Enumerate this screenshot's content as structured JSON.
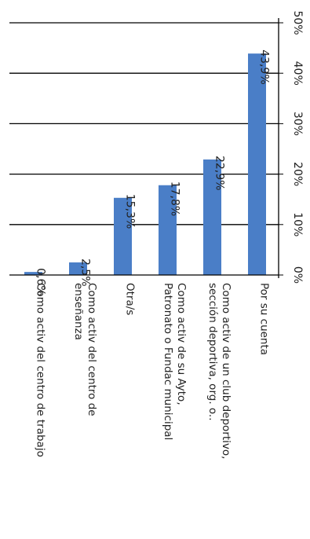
{
  "chart_data": {
    "type": "bar",
    "orientation": "vertical-bars-rotated-90-clockwise",
    "categories": [
      "Como activ del centro de trabajo",
      "Como activ del centro de enseñanza",
      "Otra/s",
      "Como activ de su Ayto, Patronato o Fundac municipal",
      "Como activ de un club deportivo, sección deportiva, org. o..",
      "Por su cuenta"
    ],
    "category_lines": [
      [
        "Como activ del centro de trabajo"
      ],
      [
        "Como activ del centro de",
        "enseñanza"
      ],
      [
        "Otra/s"
      ],
      [
        "Como activ de su Ayto,",
        "Patronato o Fundac municipal"
      ],
      [
        "Como activ de un club deportivo,",
        "sección deportiva, org. o.."
      ],
      [
        "Por su cuenta"
      ]
    ],
    "values": [
      0.6,
      2.5,
      15.3,
      17.8,
      22.9,
      43.9
    ],
    "data_labels": [
      "0,6%",
      "2,5%",
      "15,3%",
      "17,8%",
      "22,9%",
      "43,9%"
    ],
    "ylim": [
      0,
      50
    ],
    "y_ticks": [
      0,
      10,
      20,
      30,
      40,
      50
    ],
    "y_tick_labels": [
      "0%",
      "10%",
      "20%",
      "30%",
      "40%",
      "50%"
    ],
    "grid": true,
    "bar_color": "#4A7EC7",
    "grid_color": "#000000",
    "title": "",
    "xlabel": "",
    "ylabel": ""
  }
}
